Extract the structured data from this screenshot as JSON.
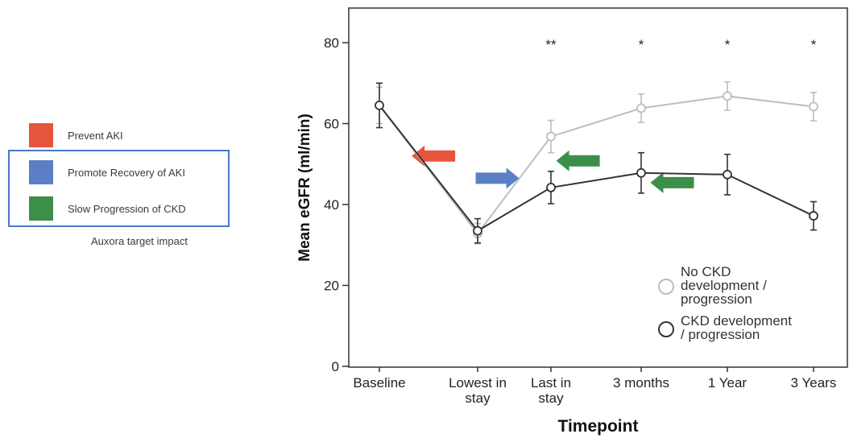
{
  "side_legend": {
    "items": [
      {
        "label": "Prevent AKI",
        "color": "#e8553d"
      },
      {
        "label": "Promote Recovery of AKI",
        "color": "#5b7fc4"
      },
      {
        "label": "Slow Progression of CKD",
        "color": "#3b8f48"
      }
    ],
    "caption": "Auxora target impact",
    "box_color": "#4a78c8"
  },
  "chart_data": {
    "type": "line",
    "title": "",
    "xlabel": "Timepoint",
    "ylabel": "Mean eGFR (ml/min)",
    "ylim": [
      0,
      80
    ],
    "yticks": [
      0,
      20,
      40,
      60,
      80
    ],
    "categories": [
      [
        "Baseline"
      ],
      [
        "Lowest in",
        "stay"
      ],
      [
        "Last in",
        "stay"
      ],
      [
        "3 months"
      ],
      [
        "1 Year"
      ],
      [
        "3 Years"
      ]
    ],
    "significance": [
      "",
      "",
      "**",
      "*",
      "*",
      "*"
    ],
    "series": [
      {
        "name": "No CKD development / progression",
        "legend_lines": [
          "No CKD",
          "development /",
          "progression"
        ],
        "color": "#bdbdbd",
        "values": [
          64.5,
          32.8,
          56.8,
          63.8,
          66.8,
          64.2
        ],
        "err": [
          4.5,
          2.5,
          4.0,
          3.5,
          3.5,
          3.5
        ]
      },
      {
        "name": "CKD development / progression",
        "legend_lines": [
          "CKD development",
          "/ progression"
        ],
        "color": "#333333",
        "values": [
          64.5,
          33.5,
          44.2,
          47.8,
          47.4,
          37.2
        ],
        "err": [
          5.5,
          3.0,
          4.0,
          5.0,
          5.0,
          3.5
        ]
      }
    ],
    "arrows": [
      {
        "direction": "left",
        "color": "#e8553d",
        "x_index": 0.55,
        "y": 52
      },
      {
        "direction": "right",
        "color": "#5b7fc4",
        "x_index": 1.27,
        "y": 46.5
      },
      {
        "direction": "left",
        "color": "#3b8f48",
        "x_index": 2.3,
        "y": 50.8
      },
      {
        "direction": "left",
        "color": "#3b8f48",
        "x_index": 3.36,
        "y": 45.4
      }
    ],
    "legend_position": "bottom-right",
    "grid": false
  }
}
